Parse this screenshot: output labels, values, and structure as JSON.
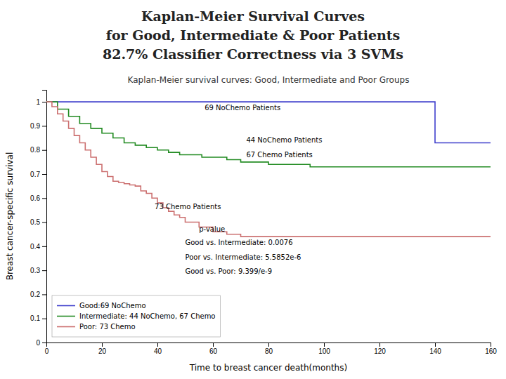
{
  "chart_data": {
    "type": "step",
    "title": [
      "Kaplan-Meier Survival Curves",
      "for Good, Intermediate & Poor Patients",
      "82.7% Classifier Correctness via 3 SVMs"
    ],
    "subtitle": "Kaplan-Meier survival curves: Good, Intermediate and Poor Groups",
    "x_label": "Time to breast cancer death(months)",
    "y_label": "Breast cancer-specific survival",
    "xlim": [
      0,
      160
    ],
    "ylim": [
      0,
      1.05
    ],
    "xticks": [
      0,
      20,
      40,
      60,
      80,
      100,
      120,
      140,
      160
    ],
    "yticks": [
      0,
      0.1,
      0.2,
      0.3,
      0.4,
      0.5,
      0.6,
      0.7,
      0.8,
      0.9,
      1
    ],
    "grid": false,
    "legend": "lower left",
    "series": [
      {
        "name": "Good:69 NoChemo",
        "color": "#4040CC",
        "x": [
          0,
          1,
          2,
          3,
          4,
          5,
          6,
          7,
          8,
          9,
          10,
          11,
          12,
          13,
          14,
          15,
          16,
          17,
          18,
          19,
          20,
          21,
          22,
          23,
          24,
          25,
          26,
          27,
          28,
          29,
          30,
          31,
          32,
          33,
          34,
          35,
          36,
          37,
          38,
          39,
          40,
          50,
          60,
          70,
          80,
          90,
          100,
          110,
          120,
          130,
          140,
          141,
          160
        ],
        "values": [
          1,
          1,
          1,
          1,
          1,
          1,
          1,
          1,
          1,
          1,
          1,
          1,
          1,
          1,
          1,
          1,
          1,
          1,
          1,
          1,
          1,
          1,
          1,
          1,
          1,
          1,
          1,
          1,
          1,
          1,
          1,
          1,
          1,
          1,
          1,
          1,
          1,
          1,
          1,
          1,
          1,
          1,
          1,
          1,
          1,
          1,
          1,
          1,
          1,
          1,
          0.83,
          0.83,
          0.83
        ]
      },
      {
        "name": "Intermediate: 44 NoChemo, 67 Chemo",
        "color": "#228B22",
        "x": [
          0,
          4,
          8,
          12,
          16,
          20,
          24,
          28,
          32,
          36,
          40,
          44,
          48,
          52,
          56,
          60,
          65,
          70,
          75,
          80,
          85,
          90,
          95,
          100,
          110,
          120,
          130,
          140,
          150,
          160
        ],
        "values": [
          1,
          0.97,
          0.94,
          0.91,
          0.89,
          0.87,
          0.85,
          0.83,
          0.82,
          0.81,
          0.8,
          0.79,
          0.78,
          0.78,
          0.77,
          0.77,
          0.76,
          0.75,
          0.75,
          0.74,
          0.74,
          0.74,
          0.73,
          0.73,
          0.73,
          0.73,
          0.73,
          0.73,
          0.73,
          0.73
        ]
      },
      {
        "name": "Poor: 73 Chemo",
        "color": "#CC7070",
        "x": [
          0,
          2,
          4,
          6,
          8,
          10,
          12,
          14,
          16,
          18,
          20,
          22,
          24,
          26,
          28,
          30,
          32,
          34,
          36,
          38,
          40,
          42,
          44,
          46,
          48,
          50,
          55,
          60,
          65,
          70,
          75,
          80,
          85,
          90,
          100,
          110,
          120,
          130,
          140,
          150,
          160
        ],
        "values": [
          1,
          0.98,
          0.95,
          0.92,
          0.89,
          0.86,
          0.83,
          0.8,
          0.77,
          0.74,
          0.71,
          0.69,
          0.67,
          0.665,
          0.66,
          0.655,
          0.65,
          0.63,
          0.62,
          0.6,
          0.58,
          0.56,
          0.545,
          0.53,
          0.52,
          0.5,
          0.48,
          0.46,
          0.45,
          0.44,
          0.44,
          0.44,
          0.44,
          0.44,
          0.44,
          0.44,
          0.44,
          0.44,
          0.44,
          0.44,
          0.44
        ]
      }
    ],
    "annotations": [
      {
        "text": "69 NoChemo Patients",
        "x": 57,
        "y": 0.965
      },
      {
        "text": "44 NoChemo Patients",
        "x": 72,
        "y": 0.83
      },
      {
        "text": "67 Chemo Patients",
        "x": 72,
        "y": 0.77
      },
      {
        "text": "73 Chemo Patients",
        "x": 39,
        "y": 0.555
      },
      {
        "text": "p-value",
        "x": 55,
        "y": 0.46
      },
      {
        "text": "Good vs. Intermediate: 0.0076",
        "x": 50,
        "y": 0.405
      },
      {
        "text": "Poor vs. Intermediate: 5.5852e-6",
        "x": 50,
        "y": 0.345
      },
      {
        "text": "Good vs. Poor: 9.399/e-9",
        "x": 50,
        "y": 0.285
      }
    ]
  }
}
